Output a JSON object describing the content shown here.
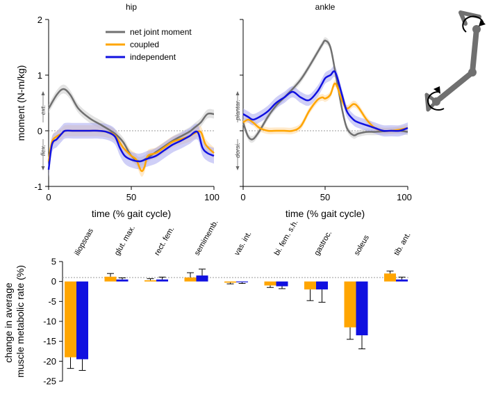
{
  "colors": {
    "net": "#707070",
    "coupled": "#FFA500",
    "independent": "#1010E0",
    "net_band": "#cccccc",
    "coupled_band": "#FFD9A0",
    "independent_band": "#A8A8F0",
    "mech": "#707070"
  },
  "chart_data": [
    {
      "type": "line",
      "title": "hip",
      "xlabel": "time (% gait cycle)",
      "ylabel": "moment (N-m/kg)",
      "xlim": [
        0,
        100
      ],
      "ylim": [
        -1,
        2
      ],
      "xticks": [
        "0",
        "50",
        "100"
      ],
      "yticks": [
        "-1",
        "0",
        "1",
        "2"
      ],
      "side_labels": {
        "positive": "ext.",
        "negative": "flex."
      },
      "legend": [
        "net joint moment",
        "coupled",
        "independent"
      ],
      "series": [
        {
          "name": "net joint moment",
          "band": 0.08,
          "x": [
            0,
            5,
            9,
            13,
            18,
            25,
            32,
            40,
            45,
            50,
            55,
            60,
            65,
            70,
            75,
            80,
            85,
            88,
            92,
            96,
            100
          ],
          "y": [
            0.4,
            0.65,
            0.75,
            0.65,
            0.4,
            0.22,
            0.1,
            -0.05,
            -0.2,
            -0.45,
            -0.55,
            -0.48,
            -0.38,
            -0.28,
            -0.18,
            -0.1,
            -0.02,
            0.05,
            0.15,
            0.3,
            0.3
          ]
        },
        {
          "name": "coupled",
          "band": 0.1,
          "x": [
            0,
            2,
            5,
            8,
            10,
            15,
            20,
            25,
            30,
            35,
            40,
            45,
            50,
            53,
            56,
            58,
            60,
            65,
            70,
            75,
            80,
            85,
            88,
            92,
            95,
            100
          ],
          "y": [
            -0.55,
            -0.2,
            -0.1,
            -0.05,
            0.0,
            0.0,
            0.0,
            0.0,
            0.0,
            -0.02,
            -0.08,
            -0.3,
            -0.45,
            -0.52,
            -0.72,
            -0.65,
            -0.45,
            -0.4,
            -0.3,
            -0.2,
            -0.15,
            -0.1,
            -0.05,
            -0.02,
            -0.25,
            -0.4
          ]
        },
        {
          "name": "independent",
          "band": 0.14,
          "x": [
            0,
            2,
            5,
            8,
            10,
            15,
            20,
            25,
            30,
            35,
            40,
            43,
            46,
            50,
            55,
            60,
            65,
            70,
            75,
            80,
            85,
            90,
            93,
            96,
            100
          ],
          "y": [
            -0.7,
            -0.25,
            -0.15,
            -0.05,
            0.0,
            0.0,
            0.0,
            0.0,
            0.0,
            -0.02,
            -0.1,
            -0.3,
            -0.45,
            -0.52,
            -0.55,
            -0.5,
            -0.45,
            -0.35,
            -0.25,
            -0.18,
            -0.1,
            -0.02,
            -0.3,
            -0.4,
            -0.45
          ]
        }
      ]
    },
    {
      "type": "line",
      "title": "ankle",
      "xlabel": "time (% gait cycle)",
      "xlim": [
        0,
        100
      ],
      "ylim": [
        -1,
        2
      ],
      "xticks": [
        "0",
        "50",
        "100"
      ],
      "side_labels": {
        "positive": "plantar.",
        "negative": "dorsi."
      },
      "series": [
        {
          "name": "net joint moment",
          "band": 0.06,
          "x": [
            0,
            3,
            6,
            10,
            15,
            20,
            25,
            30,
            35,
            40,
            45,
            48,
            50,
            53,
            56,
            60,
            63,
            67,
            70,
            75,
            80,
            85,
            90,
            95,
            100
          ],
          "y": [
            0.15,
            -0.1,
            -0.15,
            0.0,
            0.25,
            0.45,
            0.6,
            0.75,
            0.92,
            1.15,
            1.4,
            1.55,
            1.62,
            1.5,
            1.05,
            0.4,
            0.05,
            -0.08,
            -0.05,
            -0.02,
            -0.02,
            -0.01,
            0.0,
            0.0,
            -0.02
          ]
        },
        {
          "name": "coupled",
          "band": 0.06,
          "x": [
            0,
            3,
            6,
            10,
            15,
            20,
            25,
            30,
            35,
            40,
            45,
            48,
            50,
            53,
            56,
            60,
            63,
            67,
            70,
            75,
            80,
            85,
            90,
            95,
            100
          ],
          "y": [
            0.15,
            0.2,
            0.15,
            0.05,
            0.0,
            0.0,
            0.0,
            0.0,
            0.08,
            0.35,
            0.55,
            0.6,
            0.58,
            0.65,
            0.85,
            0.55,
            0.4,
            0.48,
            0.42,
            0.2,
            0.05,
            0.0,
            0.0,
            0.02,
            0.05
          ]
        },
        {
          "name": "independent",
          "band": 0.1,
          "x": [
            0,
            3,
            6,
            10,
            15,
            20,
            25,
            30,
            35,
            40,
            45,
            48,
            50,
            53,
            56,
            60,
            63,
            67,
            70,
            75,
            80,
            85,
            90,
            95,
            100
          ],
          "y": [
            0.3,
            0.25,
            0.2,
            0.25,
            0.35,
            0.5,
            0.6,
            0.7,
            0.6,
            0.55,
            0.7,
            0.85,
            0.95,
            1.0,
            1.05,
            0.65,
            0.35,
            0.2,
            0.15,
            0.1,
            0.05,
            0.0,
            0.0,
            0.0,
            0.05
          ]
        }
      ]
    },
    {
      "type": "bar",
      "title": "",
      "xlabel": "",
      "ylabel": "change in average\nmuscle metabolic rate (%)",
      "ylim": [
        -25,
        5
      ],
      "yticks": [
        "5",
        "0",
        "-5",
        "-10",
        "-15",
        "-20",
        "-25"
      ],
      "categories": [
        "iliopsoas",
        "glut. max.",
        "rect. fem.",
        "semimemb.",
        "vas. int.",
        "bi. fem. s.h.",
        "gastroc.",
        "soleus",
        "tib. ant."
      ],
      "series": [
        {
          "name": "coupled",
          "values": [
            -19,
            1.2,
            0.3,
            1.0,
            -0.3,
            -1.0,
            -2.0,
            -11.5,
            2.0
          ],
          "errors": [
            2.8,
            0.8,
            0.4,
            1.2,
            0.3,
            0.5,
            2.8,
            3.0,
            0.6
          ]
        },
        {
          "name": "independent",
          "values": [
            -19.5,
            0.5,
            0.5,
            1.5,
            -0.2,
            -1.2,
            -2.0,
            -13.5,
            0.5
          ],
          "errors": [
            2.8,
            0.4,
            0.6,
            1.6,
            0.3,
            0.6,
            3.2,
            3.4,
            0.6
          ]
        }
      ]
    }
  ]
}
